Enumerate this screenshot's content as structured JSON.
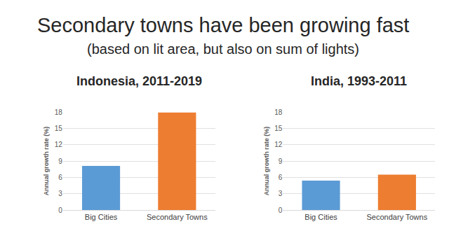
{
  "title": "Secondary towns have been growing fast",
  "subtitle": "(based on lit area, but also on sum of lights)",
  "chart_data": [
    {
      "type": "bar",
      "title": "Indonesia, 2011-2019",
      "categories": [
        "Big Cities",
        "Secondary Towns"
      ],
      "values": [
        8.1,
        17.9
      ],
      "colors": [
        "#5b9bd5",
        "#ed7d31"
      ],
      "y_label": "Annual growth rate (%)",
      "ylim": [
        0,
        18
      ],
      "yticks": [
        0,
        3,
        6,
        9,
        12,
        15,
        18
      ],
      "grid": true
    },
    {
      "type": "bar",
      "title": "India, 1993-2011",
      "categories": [
        "Big Cities",
        "Secondary Towns"
      ],
      "values": [
        5.4,
        6.5
      ],
      "colors": [
        "#5b9bd5",
        "#ed7d31"
      ],
      "y_label": "Annual growth rate (%)",
      "ylim": [
        0,
        18
      ],
      "yticks": [
        0,
        3,
        6,
        9,
        12,
        15,
        18
      ],
      "grid": true
    }
  ]
}
